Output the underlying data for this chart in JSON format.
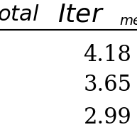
{
  "header_left": "otal",
  "header_right_main": "Iter",
  "header_right_sub": "med",
  "values": [
    "4.18",
    "3.65",
    "2.99"
  ],
  "bg_color": "#ffffff",
  "text_color": "#000000",
  "line_color": "#000000",
  "header_fontsize": 22,
  "value_fontsize": 22,
  "sub_fontsize": 14,
  "figsize": [
    1.93,
    1.93
  ],
  "dpi": 100
}
